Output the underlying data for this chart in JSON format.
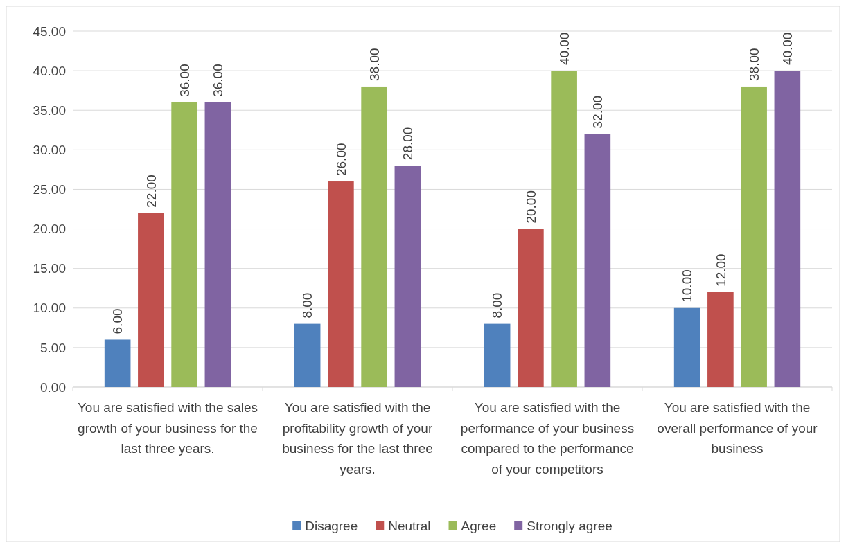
{
  "chart_data": {
    "type": "bar",
    "categories": [
      "You are satisfied with the sales growth of your business for the last three years.",
      "You are satisfied with the profitability growth of your business for the last three years.",
      "You are satisfied with the performance of your business compared to the performance of your competitors",
      "You are satisfied with the overall performance of your business"
    ],
    "series": [
      {
        "name": "Disagree",
        "color": "#4f81bd",
        "values": [
          6,
          8,
          8,
          10
        ],
        "value_labels": [
          "6.00",
          "8.00",
          "8.00",
          "10.00"
        ]
      },
      {
        "name": "Neutral",
        "color": "#c0504d",
        "values": [
          22,
          26,
          20,
          12
        ],
        "value_labels": [
          "22.00",
          "26.00",
          "20.00",
          "12.00"
        ]
      },
      {
        "name": "Agree",
        "color": "#9bbb59",
        "values": [
          36,
          38,
          40,
          38
        ],
        "value_labels": [
          "36.00",
          "38.00",
          "40.00",
          "38.00"
        ]
      },
      {
        "name": "Strongly agree",
        "color": "#8064a2",
        "values": [
          36,
          28,
          32,
          40
        ],
        "value_labels": [
          "36.00",
          "28.00",
          "32.00",
          "40.00"
        ]
      }
    ],
    "ylim": [
      0,
      45
    ],
    "yticks": [
      {
        "value": 0,
        "label": "0.00"
      },
      {
        "value": 5,
        "label": "5.00"
      },
      {
        "value": 10,
        "label": "10.00"
      },
      {
        "value": 15,
        "label": "15.00"
      },
      {
        "value": 20,
        "label": "20.00"
      },
      {
        "value": 25,
        "label": "25.00"
      },
      {
        "value": 30,
        "label": "30.00"
      },
      {
        "value": 35,
        "label": "35.00"
      },
      {
        "value": 40,
        "label": "40.00"
      },
      {
        "value": 45,
        "label": "45.00"
      }
    ],
    "grid": "y",
    "legend": "bottom"
  }
}
